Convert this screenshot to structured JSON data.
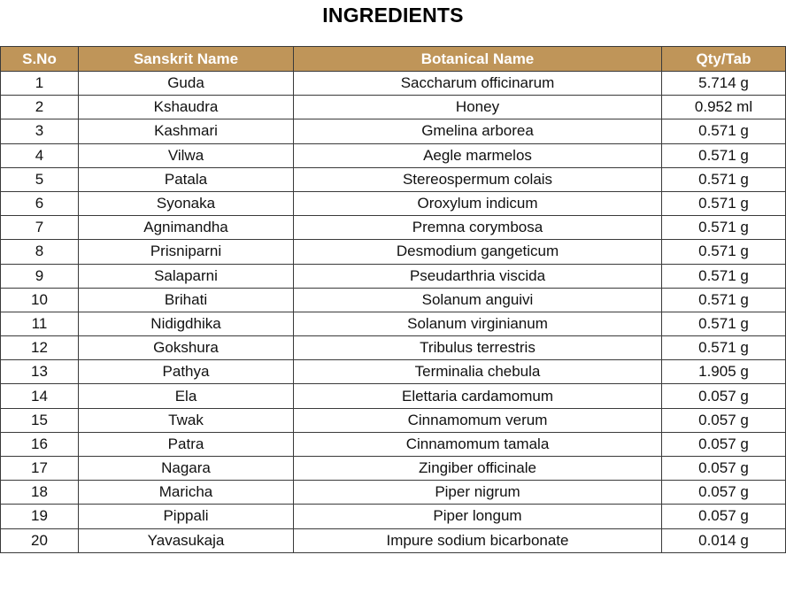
{
  "title": "INGREDIENTS",
  "columns": {
    "sno": "S.No",
    "sanskrit": "Sanskrit Name",
    "botanical": "Botanical Name",
    "qty": "Qty/Tab"
  },
  "colors": {
    "header_bg": "#bf9559",
    "header_text": "#ffffff",
    "border": "#3a3a3a"
  },
  "rows": [
    {
      "sno": "1",
      "sanskrit": "Guda",
      "botanical": "Saccharum officinarum",
      "qty": "5.714 g"
    },
    {
      "sno": "2",
      "sanskrit": "Kshaudra",
      "botanical": "Honey",
      "qty": "0.952 ml"
    },
    {
      "sno": "3",
      "sanskrit": "Kashmari",
      "botanical": "Gmelina arborea",
      "qty": "0.571 g"
    },
    {
      "sno": "4",
      "sanskrit": "Vilwa",
      "botanical": "Aegle marmelos",
      "qty": "0.571 g"
    },
    {
      "sno": "5",
      "sanskrit": "Patala",
      "botanical": "Stereospermum colais",
      "qty": "0.571 g"
    },
    {
      "sno": "6",
      "sanskrit": "Syonaka",
      "botanical": "Oroxylum indicum",
      "qty": "0.571 g"
    },
    {
      "sno": "7",
      "sanskrit": "Agnimandha",
      "botanical": "Premna corymbosa",
      "qty": "0.571 g"
    },
    {
      "sno": "8",
      "sanskrit": "Prisniparni",
      "botanical": "Desmodium gangeticum",
      "qty": "0.571 g"
    },
    {
      "sno": "9",
      "sanskrit": "Salaparni",
      "botanical": "Pseudarthria viscida",
      "qty": "0.571 g"
    },
    {
      "sno": "10",
      "sanskrit": "Brihati",
      "botanical": "Solanum anguivi",
      "qty": "0.571 g"
    },
    {
      "sno": "11",
      "sanskrit": "Nidigdhika",
      "botanical": "Solanum virginianum",
      "qty": "0.571 g"
    },
    {
      "sno": "12",
      "sanskrit": "Gokshura",
      "botanical": "Tribulus terrestris",
      "qty": "0.571 g"
    },
    {
      "sno": "13",
      "sanskrit": "Pathya",
      "botanical": "Terminalia chebula",
      "qty": "1.905 g"
    },
    {
      "sno": "14",
      "sanskrit": "Ela",
      "botanical": "Elettaria cardamomum",
      "qty": "0.057 g"
    },
    {
      "sno": "15",
      "sanskrit": "Twak",
      "botanical": "Cinnamomum verum",
      "qty": "0.057 g"
    },
    {
      "sno": "16",
      "sanskrit": "Patra",
      "botanical": "Cinnamomum tamala",
      "qty": "0.057 g"
    },
    {
      "sno": "17",
      "sanskrit": "Nagara",
      "botanical": "Zingiber officinale",
      "qty": "0.057 g"
    },
    {
      "sno": "18",
      "sanskrit": "Maricha",
      "botanical": "Piper nigrum",
      "qty": "0.057 g"
    },
    {
      "sno": "19",
      "sanskrit": "Pippali",
      "botanical": "Piper longum",
      "qty": "0.057 g"
    },
    {
      "sno": "20",
      "sanskrit": "Yavasukaja",
      "botanical": "Impure sodium bicarbonate",
      "qty": "0.014 g"
    }
  ]
}
